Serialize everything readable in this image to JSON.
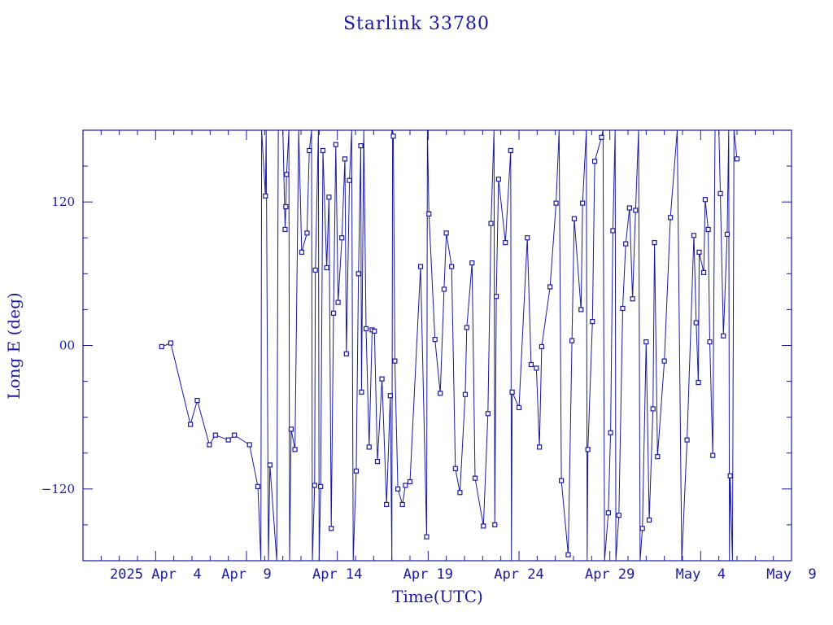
{
  "chart_data": {
    "type": "line",
    "title": "Starlink 33780",
    "xlabel": "Time(UTC)",
    "ylabel": "Long E (deg)",
    "xlim": [
      "2025-03-31T00:00",
      "2025-05-09T00:00"
    ],
    "ylim": [
      -180,
      180
    ],
    "grid": false,
    "colors": {
      "line": "#1a1aa0",
      "frame": "#1a1aa0",
      "marker": "#1a1aa0"
    },
    "x_tick_labels": [
      {
        "at": "2025-04-04T00:00",
        "label": "2025 Apr  4"
      },
      {
        "at": "2025-04-09T00:00",
        "label": "Apr  9"
      },
      {
        "at": "2025-04-14T00:00",
        "label": "Apr 14"
      },
      {
        "at": "2025-04-19T00:00",
        "label": "Apr 19"
      },
      {
        "at": "2025-04-24T00:00",
        "label": "Apr 24"
      },
      {
        "at": "2025-04-29T00:00",
        "label": "Apr 29"
      },
      {
        "at": "2025-05-04T00:00",
        "label": "May  4"
      },
      {
        "at": "2025-05-09T00:00",
        "label": "May  9"
      }
    ],
    "y_tick_labels": [
      {
        "at": 120,
        "label": "120"
      },
      {
        "at": 0,
        "label": "00"
      },
      {
        "at": -120,
        "label": "−120"
      }
    ],
    "series": [
      {
        "points": [
          [
            "2025-04-04T08:00",
            -1
          ],
          [
            "2025-04-04T20:00",
            2
          ],
          [
            "2025-04-05T22:00",
            -66
          ],
          [
            "2025-04-06T07:00",
            -46
          ],
          [
            "2025-04-06T23:00",
            -83
          ],
          [
            "2025-04-07T07:00",
            -75
          ],
          [
            "2025-04-08T00:00",
            -79
          ],
          [
            "2025-04-08T08:00",
            -75
          ],
          [
            "2025-04-09T04:00",
            -83
          ],
          [
            "2025-04-09T15:00",
            -118
          ],
          [
            "2025-04-09T19:00",
            -180
          ],
          [
            "2025-04-09T20:00",
            180
          ],
          [
            "2025-04-10T01:00",
            125
          ],
          [
            "2025-04-10T02:00",
            180
          ],
          [
            "2025-04-10T05:00",
            -180
          ],
          [
            "2025-04-10T07:00",
            -100
          ],
          [
            "2025-04-10T16:00",
            -180
          ],
          [
            "2025-04-10T18:00",
            180
          ],
          [
            "2025-04-11T00:00",
            180
          ],
          [
            "2025-04-11T03:00",
            97
          ],
          [
            "2025-04-11T04:00",
            116
          ],
          [
            "2025-04-11T05:00",
            143
          ],
          [
            "2025-04-11T08:00",
            180
          ],
          [
            "2025-04-11T09:00",
            -180
          ],
          [
            "2025-04-11T11:00",
            -70
          ],
          [
            "2025-04-11T16:00",
            -87
          ],
          [
            "2025-04-11T21:00",
            180
          ],
          [
            "2025-04-12T01:00",
            78
          ],
          [
            "2025-04-12T08:00",
            94
          ],
          [
            "2025-04-12T11:00",
            163
          ],
          [
            "2025-04-12T14:00",
            180
          ],
          [
            "2025-04-12T15:00",
            -180
          ],
          [
            "2025-04-12T18:00",
            -117
          ],
          [
            "2025-04-12T19:00",
            63
          ],
          [
            "2025-04-12T23:00",
            180
          ],
          [
            "2025-04-13T00:00",
            -180
          ],
          [
            "2025-04-13T02:00",
            -118
          ],
          [
            "2025-04-13T05:00",
            163
          ],
          [
            "2025-04-13T10:00",
            65
          ],
          [
            "2025-04-13T13:00",
            124
          ],
          [
            "2025-04-13T16:00",
            -153
          ],
          [
            "2025-04-13T19:00",
            27
          ],
          [
            "2025-04-13T22:00",
            168
          ],
          [
            "2025-04-14T01:00",
            36
          ],
          [
            "2025-04-14T06:00",
            90
          ],
          [
            "2025-04-14T10:00",
            156
          ],
          [
            "2025-04-14T12:00",
            -7
          ],
          [
            "2025-04-14T16:00",
            138
          ],
          [
            "2025-04-14T19:00",
            180
          ],
          [
            "2025-04-14T21:00",
            -180
          ],
          [
            "2025-04-15T01:00",
            -105
          ],
          [
            "2025-04-15T04:00",
            60
          ],
          [
            "2025-04-15T07:00",
            167
          ],
          [
            "2025-04-15T08:00",
            -39
          ],
          [
            "2025-04-15T11:00",
            180
          ],
          [
            "2025-04-15T14:00",
            14
          ],
          [
            "2025-04-15T18:00",
            -85
          ],
          [
            "2025-04-15T22:00",
            13
          ],
          [
            "2025-04-16T01:00",
            12
          ],
          [
            "2025-04-16T05:00",
            -97
          ],
          [
            "2025-04-16T11:00",
            -28
          ],
          [
            "2025-04-16T17:00",
            -133
          ],
          [
            "2025-04-16T22:00",
            -42
          ],
          [
            "2025-04-17T00:00",
            -180
          ],
          [
            "2025-04-17T01:00",
            180
          ],
          [
            "2025-04-17T02:00",
            175
          ],
          [
            "2025-04-17T04:00",
            -13
          ],
          [
            "2025-04-17T08:00",
            -120
          ],
          [
            "2025-04-17T14:00",
            -133
          ],
          [
            "2025-04-17T18:00",
            -117
          ],
          [
            "2025-04-18T00:00",
            -114
          ],
          [
            "2025-04-18T14:00",
            66
          ],
          [
            "2025-04-18T22:00",
            -160
          ],
          [
            "2025-04-18T23:00",
            180
          ],
          [
            "2025-04-19T01:00",
            110
          ],
          [
            "2025-04-19T09:00",
            5
          ],
          [
            "2025-04-19T16:00",
            -40
          ],
          [
            "2025-04-19T21:00",
            47
          ],
          [
            "2025-04-20T00:00",
            94
          ],
          [
            "2025-04-20T07:00",
            66
          ],
          [
            "2025-04-20T12:00",
            -103
          ],
          [
            "2025-04-20T18:00",
            -123
          ],
          [
            "2025-04-21T01:00",
            -41
          ],
          [
            "2025-04-21T03:00",
            15
          ],
          [
            "2025-04-21T10:00",
            69
          ],
          [
            "2025-04-21T14:00",
            -111
          ],
          [
            "2025-04-22T01:00",
            -151
          ],
          [
            "2025-04-22T07:00",
            -57
          ],
          [
            "2025-04-22T11:00",
            102
          ],
          [
            "2025-04-22T15:00",
            180
          ],
          [
            "2025-04-22T16:00",
            -150
          ],
          [
            "2025-04-22T18:00",
            41
          ],
          [
            "2025-04-22T21:00",
            139
          ],
          [
            "2025-04-23T06:00",
            86
          ],
          [
            "2025-04-23T13:00",
            163
          ],
          [
            "2025-04-23T14:00",
            -180
          ],
          [
            "2025-04-23T15:00",
            -39
          ],
          [
            "2025-04-24T00:00",
            -52
          ],
          [
            "2025-04-24T11:00",
            90
          ],
          [
            "2025-04-24T16:00",
            -16
          ],
          [
            "2025-04-24T23:00",
            -19
          ],
          [
            "2025-04-25T03:00",
            -85
          ],
          [
            "2025-04-25T06:00",
            -1
          ],
          [
            "2025-04-25T17:00",
            49
          ],
          [
            "2025-04-26T01:00",
            119
          ],
          [
            "2025-04-26T05:00",
            180
          ],
          [
            "2025-04-26T08:00",
            -113
          ],
          [
            "2025-04-26T17:00",
            -175
          ],
          [
            "2025-04-26T22:00",
            4
          ],
          [
            "2025-04-27T01:00",
            106
          ],
          [
            "2025-04-27T10:00",
            30
          ],
          [
            "2025-04-27T12:00",
            119
          ],
          [
            "2025-04-27T17:00",
            180
          ],
          [
            "2025-04-27T18:00",
            -180
          ],
          [
            "2025-04-27T19:00",
            -87
          ],
          [
            "2025-04-28T01:00",
            20
          ],
          [
            "2025-04-28T04:00",
            154
          ],
          [
            "2025-04-28T13:00",
            174
          ],
          [
            "2025-04-28T15:00",
            180
          ],
          [
            "2025-04-28T17:00",
            -180
          ],
          [
            "2025-04-28T22:00",
            -140
          ],
          [
            "2025-04-29T01:00",
            -73
          ],
          [
            "2025-04-29T04:00",
            96
          ],
          [
            "2025-04-29T07:00",
            180
          ],
          [
            "2025-04-29T08:00",
            -180
          ],
          [
            "2025-04-29T12:00",
            -142
          ],
          [
            "2025-04-29T17:00",
            31
          ],
          [
            "2025-04-29T21:00",
            85
          ],
          [
            "2025-04-30T02:00",
            115
          ],
          [
            "2025-04-30T06:00",
            39
          ],
          [
            "2025-04-30T10:00",
            113
          ],
          [
            "2025-04-30T14:00",
            180
          ],
          [
            "2025-04-30T16:00",
            -180
          ],
          [
            "2025-04-30T19:00",
            -153
          ],
          [
            "2025-05-01T00:00",
            3
          ],
          [
            "2025-05-01T04:00",
            -146
          ],
          [
            "2025-05-01T09:00",
            -53
          ],
          [
            "2025-05-01T11:00",
            86
          ],
          [
            "2025-05-01T15:00",
            -93
          ],
          [
            "2025-05-02T00:00",
            -13
          ],
          [
            "2025-05-02T08:00",
            107
          ],
          [
            "2025-05-02T17:00",
            180
          ],
          [
            "2025-05-02T23:00",
            -180
          ],
          [
            "2025-05-03T06:00",
            -79
          ],
          [
            "2025-05-03T15:00",
            92
          ],
          [
            "2025-05-03T18:00",
            19
          ],
          [
            "2025-05-03T21:00",
            -31
          ],
          [
            "2025-05-03T22:00",
            78
          ],
          [
            "2025-05-04T04:00",
            61
          ],
          [
            "2025-05-04T06:00",
            122
          ],
          [
            "2025-05-04T10:00",
            97
          ],
          [
            "2025-05-04T12:00",
            3
          ],
          [
            "2025-05-04T16:00",
            -92
          ],
          [
            "2025-05-04T19:00",
            180
          ],
          [
            "2025-05-05T00:00",
            180
          ],
          [
            "2025-05-05T02:00",
            127
          ],
          [
            "2025-05-05T06:00",
            8
          ],
          [
            "2025-05-05T11:00",
            93
          ],
          [
            "2025-05-05T13:00",
            180
          ],
          [
            "2025-05-05T14:00",
            -180
          ],
          [
            "2025-05-05T15:00",
            -109
          ],
          [
            "2025-05-05T18:00",
            -180
          ],
          [
            "2025-05-05T20:00",
            180
          ],
          [
            "2025-05-06T00:00",
            156
          ]
        ]
      }
    ]
  }
}
